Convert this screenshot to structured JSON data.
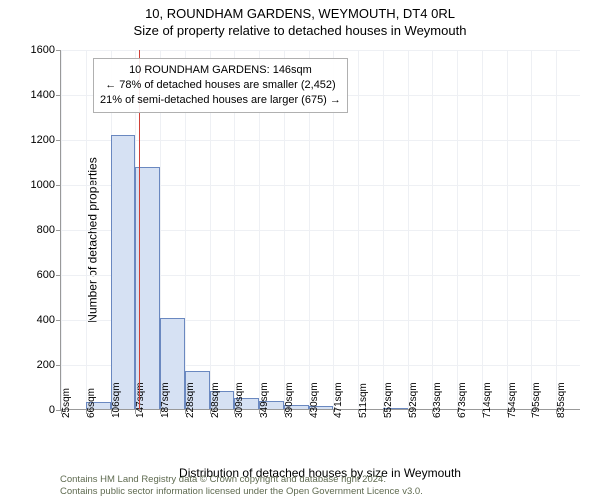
{
  "title": "10, ROUNDHAM GARDENS, WEYMOUTH, DT4 0RL",
  "subtitle": "Size of property relative to detached houses in Weymouth",
  "chart": {
    "type": "histogram",
    "ylabel": "Number of detached properties",
    "xlabel": "Distribution of detached houses by size in Weymouth",
    "ylim_min": 0,
    "ylim_max": 1600,
    "yticks": [
      0,
      200,
      400,
      600,
      800,
      1000,
      1200,
      1400,
      1600
    ],
    "xticks": [
      "25sqm",
      "66sqm",
      "106sqm",
      "147sqm",
      "187sqm",
      "228sqm",
      "268sqm",
      "309sqm",
      "349sqm",
      "390sqm",
      "430sqm",
      "471sqm",
      "511sqm",
      "552sqm",
      "592sqm",
      "633sqm",
      "673sqm",
      "714sqm",
      "754sqm",
      "795sqm",
      "835sqm"
    ],
    "bars": [
      0,
      30,
      1220,
      1075,
      405,
      170,
      80,
      50,
      35,
      20,
      12,
      0,
      0,
      5,
      0,
      0,
      0,
      0,
      0,
      0,
      0
    ],
    "bar_fill": "#d6e1f3",
    "bar_stroke": "#6a88c0",
    "grid_color": "#eef0f4",
    "axis_color": "#999999",
    "background": "#ffffff",
    "reference_line_color": "#d04038",
    "reference_x_sqm": 146,
    "x_min_sqm": 25,
    "x_max_sqm": 835,
    "annotation_lines": [
      "10 ROUNDHAM GARDENS: 146sqm",
      "← 78% of detached houses are smaller (2,452)",
      "21% of semi-detached houses are larger (675) →"
    ],
    "title_fontsize": 13,
    "label_fontsize": 12,
    "tick_fontsize": 11
  },
  "footer": {
    "line1": "Contains HM Land Registry data © Crown copyright and database right 2024.",
    "line2": "Contains public sector information licensed under the Open Government Licence v3.0."
  }
}
